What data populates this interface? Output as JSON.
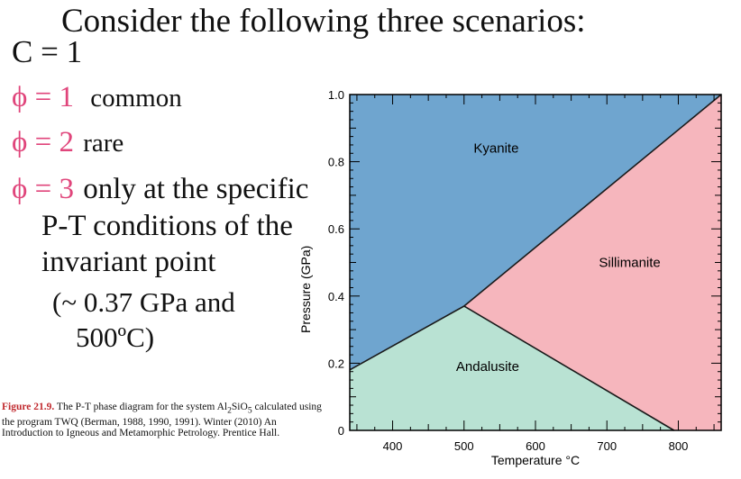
{
  "slide": {
    "title": "Consider the following three scenarios:",
    "c_line": "C = 1",
    "phi1": {
      "eq": "ϕ = 1",
      "desc": "common"
    },
    "phi2": {
      "eq": "ϕ = 2",
      "desc": "rare"
    },
    "phi3": {
      "eq": "ϕ = 3",
      "desc1": "only at the specific",
      "desc2": "P-T conditions of the",
      "desc3": "invariant point",
      "desc4": "(~ 0.37 GPa and",
      "desc5": "500ºC)"
    }
  },
  "caption": {
    "figure_label": "Figure 21.9.",
    "text_a": "The P-T phase diagram for the system Al",
    "sub_a": "2",
    "text_b": "SiO",
    "sub_b": "5",
    "text_c": " calculated using the program TWQ (Berman, 1988, 1990, 1991). Winter (2010) An Introduction to Igneous and Metamorphic Petrology. Prentice Hall."
  },
  "chart_data": {
    "type": "area",
    "xlabel": "Temperature °C",
    "ylabel": "Pressure (GPa)",
    "xlim": [
      340,
      860
    ],
    "ylim": [
      0,
      1.0
    ],
    "x_ticks": [
      400,
      500,
      600,
      700,
      800
    ],
    "y_ticks": [
      {
        "value": 0,
        "label": "0"
      },
      {
        "value": 0.2,
        "label": "0.2"
      },
      {
        "value": 0.4,
        "label": "0.4"
      },
      {
        "value": 0.6,
        "label": "0.6"
      },
      {
        "value": 0.8,
        "label": "0.8"
      },
      {
        "value": 1.0,
        "label": "1.0"
      }
    ],
    "invariant_point": {
      "x": 500,
      "y": 0.37
    },
    "phases": [
      {
        "name": "Kyanite",
        "color": "#6fa5cf",
        "label_at": [
          545,
          0.84
        ],
        "polygon": [
          [
            340,
            0.18
          ],
          [
            500,
            0.37
          ],
          [
            860,
            1.0
          ],
          [
            340,
            1.0
          ]
        ]
      },
      {
        "name": "Sillimanite",
        "color": "#f6b6bd",
        "label_at": [
          732,
          0.5
        ],
        "polygon": [
          [
            500,
            0.37
          ],
          [
            860,
            1.0
          ],
          [
            860,
            0.0
          ],
          [
            794,
            0.0
          ]
        ]
      },
      {
        "name": "Andalusite",
        "color": "#b9e2d3",
        "label_at": [
          533,
          0.19
        ],
        "polygon": [
          [
            340,
            0.0
          ],
          [
            340,
            0.18
          ],
          [
            500,
            0.37
          ],
          [
            794,
            0.0
          ]
        ]
      }
    ],
    "boundaries": [
      {
        "name": "kyanite-andalusite",
        "points": [
          [
            340,
            0.18
          ],
          [
            500,
            0.37
          ]
        ]
      },
      {
        "name": "kyanite-sillimanite",
        "points": [
          [
            500,
            0.37
          ],
          [
            860,
            1.0
          ]
        ]
      },
      {
        "name": "andalusite-sillimanite",
        "points": [
          [
            500,
            0.37
          ],
          [
            794,
            0.0
          ]
        ]
      }
    ]
  }
}
